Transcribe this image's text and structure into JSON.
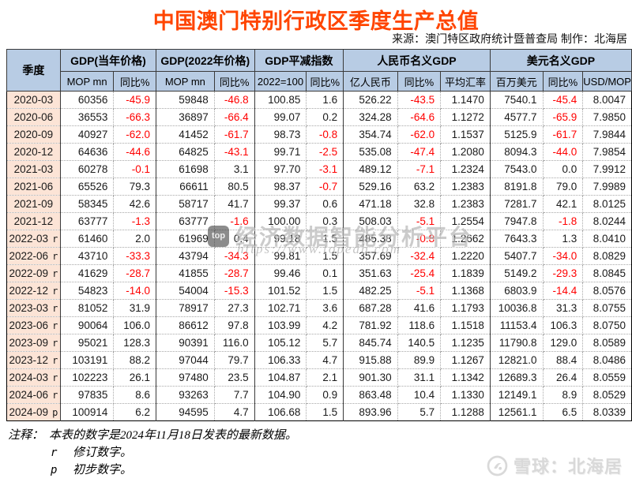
{
  "title": "中国澳门特别行政区季度生产总值",
  "source_line": "来源：澳门特区政府统计暨普查局  制作：北海居",
  "chart_data": {
    "type": "table",
    "title": "中国澳门特别行政区季度生产总值",
    "quarter_header": "季度",
    "groups": [
      {
        "label": "GDP(当年价格)",
        "cols": [
          "MOP mn",
          "同比%"
        ]
      },
      {
        "label": "GDP(2022年价格)",
        "cols": [
          "MOP mn",
          "同比%"
        ]
      },
      {
        "label": "GDP平减指数",
        "cols": [
          "2022=100",
          "同比%"
        ]
      },
      {
        "label": "人民币名义GDP",
        "cols": [
          "亿人民币",
          "同比%",
          "平均汇率"
        ]
      },
      {
        "label": "美元名义GDP",
        "cols": [
          "百万美元",
          "同比%",
          "USD/MOP"
        ]
      }
    ],
    "rows": [
      {
        "quarter": "2020-03",
        "flag": "",
        "values": [
          "60356",
          "-45.9",
          "59848",
          "-46.8",
          "100.85",
          "1.6",
          "526.22",
          "-43.5",
          "1.1470",
          "7540.1",
          "-45.4",
          "8.0047"
        ]
      },
      {
        "quarter": "2020-06",
        "flag": "",
        "values": [
          "36553",
          "-66.3",
          "36897",
          "-66.4",
          "99.07",
          "0.2",
          "324.28",
          "-64.6",
          "1.1272",
          "4577.7",
          "-65.9",
          "7.9850"
        ]
      },
      {
        "quarter": "2020-09",
        "flag": "",
        "values": [
          "40927",
          "-62.0",
          "41452",
          "-61.7",
          "98.73",
          "-0.8",
          "354.74",
          "-62.0",
          "1.1537",
          "5125.9",
          "-61.7",
          "7.9844"
        ]
      },
      {
        "quarter": "2020-12",
        "flag": "",
        "values": [
          "64636",
          "-44.6",
          "64825",
          "-43.1",
          "99.71",
          "-2.5",
          "535.08",
          "-47.4",
          "1.2080",
          "8094.3",
          "-44.0",
          "7.9854"
        ]
      },
      {
        "quarter": "2021-03",
        "flag": "",
        "values": [
          "60278",
          "-0.1",
          "61698",
          "3.1",
          "97.70",
          "-3.1",
          "489.12",
          "-7.1",
          "1.2324",
          "7543.0",
          "0.0",
          "7.9912"
        ]
      },
      {
        "quarter": "2021-06",
        "flag": "",
        "values": [
          "65526",
          "79.3",
          "66611",
          "80.5",
          "98.37",
          "-0.7",
          "529.16",
          "63.2",
          "1.2383",
          "8191.8",
          "79.0",
          "7.9989"
        ]
      },
      {
        "quarter": "2021-09",
        "flag": "",
        "values": [
          "58345",
          "42.6",
          "58717",
          "41.7",
          "99.37",
          "0.6",
          "471.18",
          "32.8",
          "1.2383",
          "7281.7",
          "42.1",
          "8.0125"
        ]
      },
      {
        "quarter": "2021-12",
        "flag": "",
        "values": [
          "63777",
          "-1.3",
          "63777",
          "-1.6",
          "100.00",
          "0.3",
          "508.03",
          "-5.1",
          "1.2554",
          "7947.8",
          "-1.8",
          "8.0244"
        ]
      },
      {
        "quarter": "2022-03",
        "flag": "r",
        "values": [
          "61460",
          "2.0",
          "61969",
          "0.4",
          "99.18",
          "1.5",
          "485.38",
          "-0.8",
          "1.2662",
          "7643.3",
          "1.3",
          "8.0410"
        ]
      },
      {
        "quarter": "2022-06",
        "flag": "r",
        "values": [
          "43710",
          "-33.3",
          "43794",
          "-34.3",
          "99.81",
          "1.5",
          "357.69",
          "-32.4",
          "1.2220",
          "5407.7",
          "-34.0",
          "8.0829"
        ]
      },
      {
        "quarter": "2022-09",
        "flag": "r",
        "values": [
          "41629",
          "-28.7",
          "41855",
          "-28.7",
          "99.46",
          "0.1",
          "351.63",
          "-25.4",
          "1.1839",
          "5149.2",
          "-29.3",
          "8.0845"
        ]
      },
      {
        "quarter": "2022-12",
        "flag": "r",
        "values": [
          "54823",
          "-14.0",
          "54004",
          "-15.3",
          "101.52",
          "1.5",
          "482.25",
          "-5.1",
          "1.1368",
          "6803.9",
          "-14.4",
          "8.0576"
        ]
      },
      {
        "quarter": "2023-03",
        "flag": "r",
        "values": [
          "81052",
          "31.9",
          "78917",
          "27.3",
          "102.71",
          "3.6",
          "687.28",
          "41.6",
          "1.1793",
          "10036.8",
          "31.3",
          "8.0755"
        ]
      },
      {
        "quarter": "2023-06",
        "flag": "r",
        "values": [
          "90064",
          "106.0",
          "86612",
          "97.8",
          "103.99",
          "4.2",
          "781.92",
          "118.6",
          "1.1518",
          "11153.4",
          "106.3",
          "8.0750"
        ]
      },
      {
        "quarter": "2023-09",
        "flag": "r",
        "values": [
          "95021",
          "128.3",
          "90391",
          "116.0",
          "105.12",
          "5.7",
          "845.74",
          "140.5",
          "1.1235",
          "11790.8",
          "129.0",
          "8.0589"
        ]
      },
      {
        "quarter": "2023-12",
        "flag": "r",
        "values": [
          "103191",
          "88.2",
          "97044",
          "79.7",
          "106.33",
          "4.7",
          "915.88",
          "89.9",
          "1.1267",
          "12821.0",
          "88.4",
          "8.0486"
        ]
      },
      {
        "quarter": "2024-03",
        "flag": "r",
        "values": [
          "102223",
          "26.1",
          "97480",
          "23.5",
          "104.87",
          "2.1",
          "901.30",
          "31.1",
          "1.1342",
          "12689.3",
          "26.4",
          "8.0559"
        ]
      },
      {
        "quarter": "2024-06",
        "flag": "r",
        "values": [
          "97835",
          "8.6",
          "93263",
          "7.7",
          "104.90",
          "0.9",
          "863.48",
          "10.4",
          "1.1330",
          "12149.1",
          "8.9",
          "8.0529"
        ]
      },
      {
        "quarter": "2024-09",
        "flag": "p",
        "values": [
          "100914",
          "6.2",
          "94595",
          "4.7",
          "106.68",
          "1.5",
          "893.96",
          "5.7",
          "1.1288",
          "12561.1",
          "6.5",
          "8.0339"
        ]
      }
    ]
  },
  "notes": {
    "label": "注释：",
    "line1": "本表的数字是2024年11月18日发表的最新数据。",
    "r_key": "r",
    "r_text": "修订数字。",
    "p_key": "p",
    "p_text": "初步数字。"
  },
  "watermarks": {
    "center_logo": "top",
    "center_text": "经济数据智能分析平台",
    "center_url": "https://www.topedb.com",
    "bottom_right": "雪球：北海居"
  },
  "colors": {
    "title": "#ff4500",
    "header_bg": "#b8cce4",
    "quarter_bg": "#fce4d6",
    "negative": "#ff0000"
  }
}
